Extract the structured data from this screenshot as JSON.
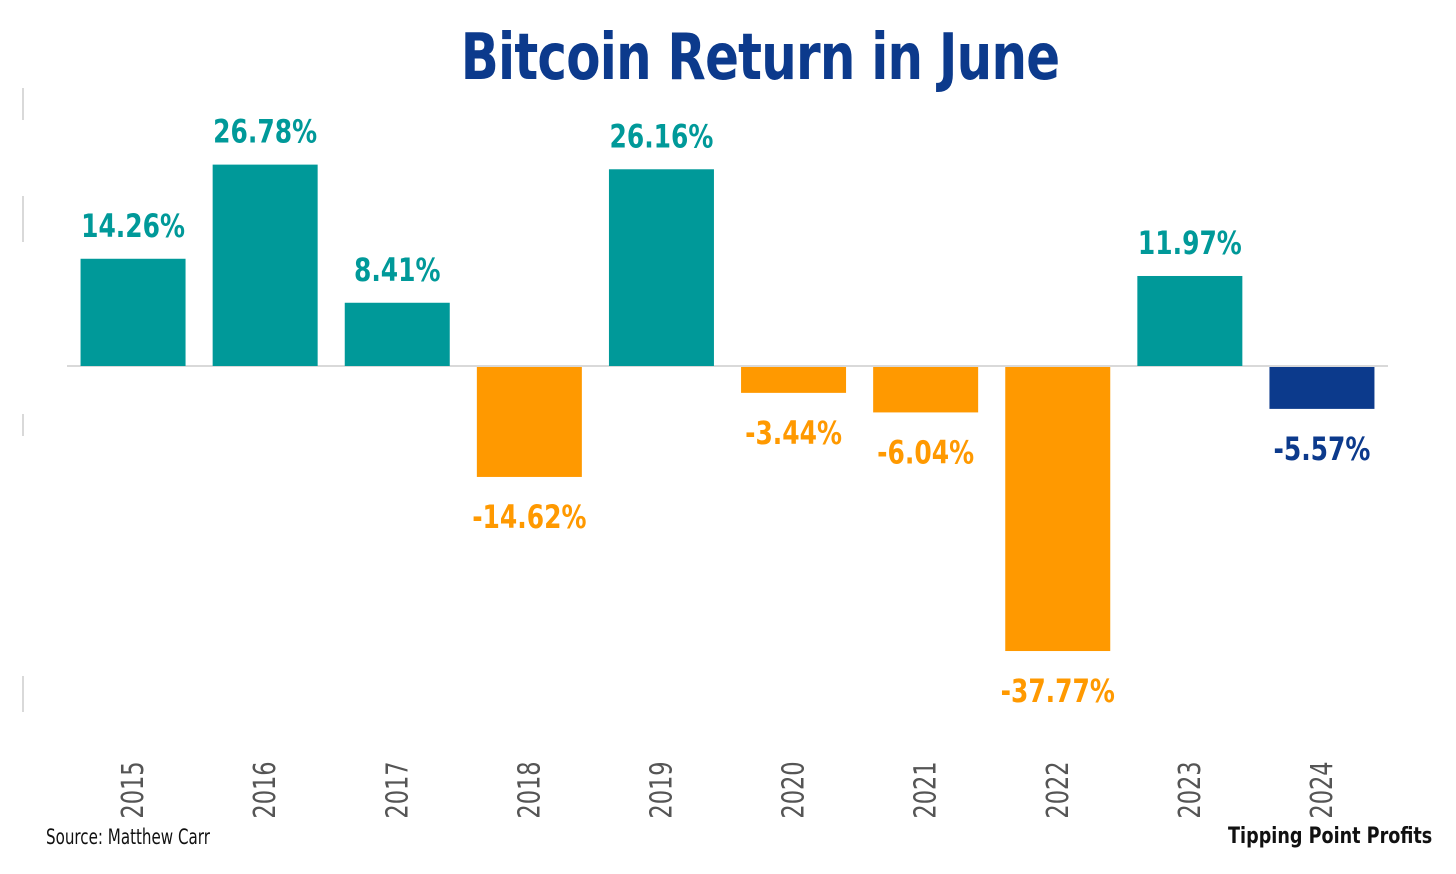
{
  "chart_data": {
    "type": "bar",
    "title": "Bitcoin Return in June",
    "xlabel": "",
    "ylabel": "",
    "categories": [
      "2015",
      "2016",
      "2017",
      "2018",
      "2019",
      "2020",
      "2021",
      "2022",
      "2023",
      "2024"
    ],
    "values": [
      14.26,
      26.78,
      8.41,
      -14.62,
      26.16,
      -3.44,
      -6.04,
      -37.77,
      11.97,
      -5.57
    ],
    "data_labels": [
      "14.26%",
      "26.78%",
      "8.41%",
      "-14.62%",
      "26.16%",
      "-3.44%",
      "-6.04%",
      "-37.77%",
      "11.97%",
      "-5.57%"
    ],
    "ylim": [
      -46,
      36
    ],
    "grid": false,
    "legend": "none",
    "colors": {
      "positive": "#009999",
      "negative": "#ff9900",
      "current": "#0c3a8c",
      "title": "#0c3a8c",
      "axis": "#d9d9d9"
    },
    "highlight_category": "2024"
  },
  "footer": {
    "source": "Source: Matthew Carr",
    "brand": "Tipping Point Profits"
  }
}
